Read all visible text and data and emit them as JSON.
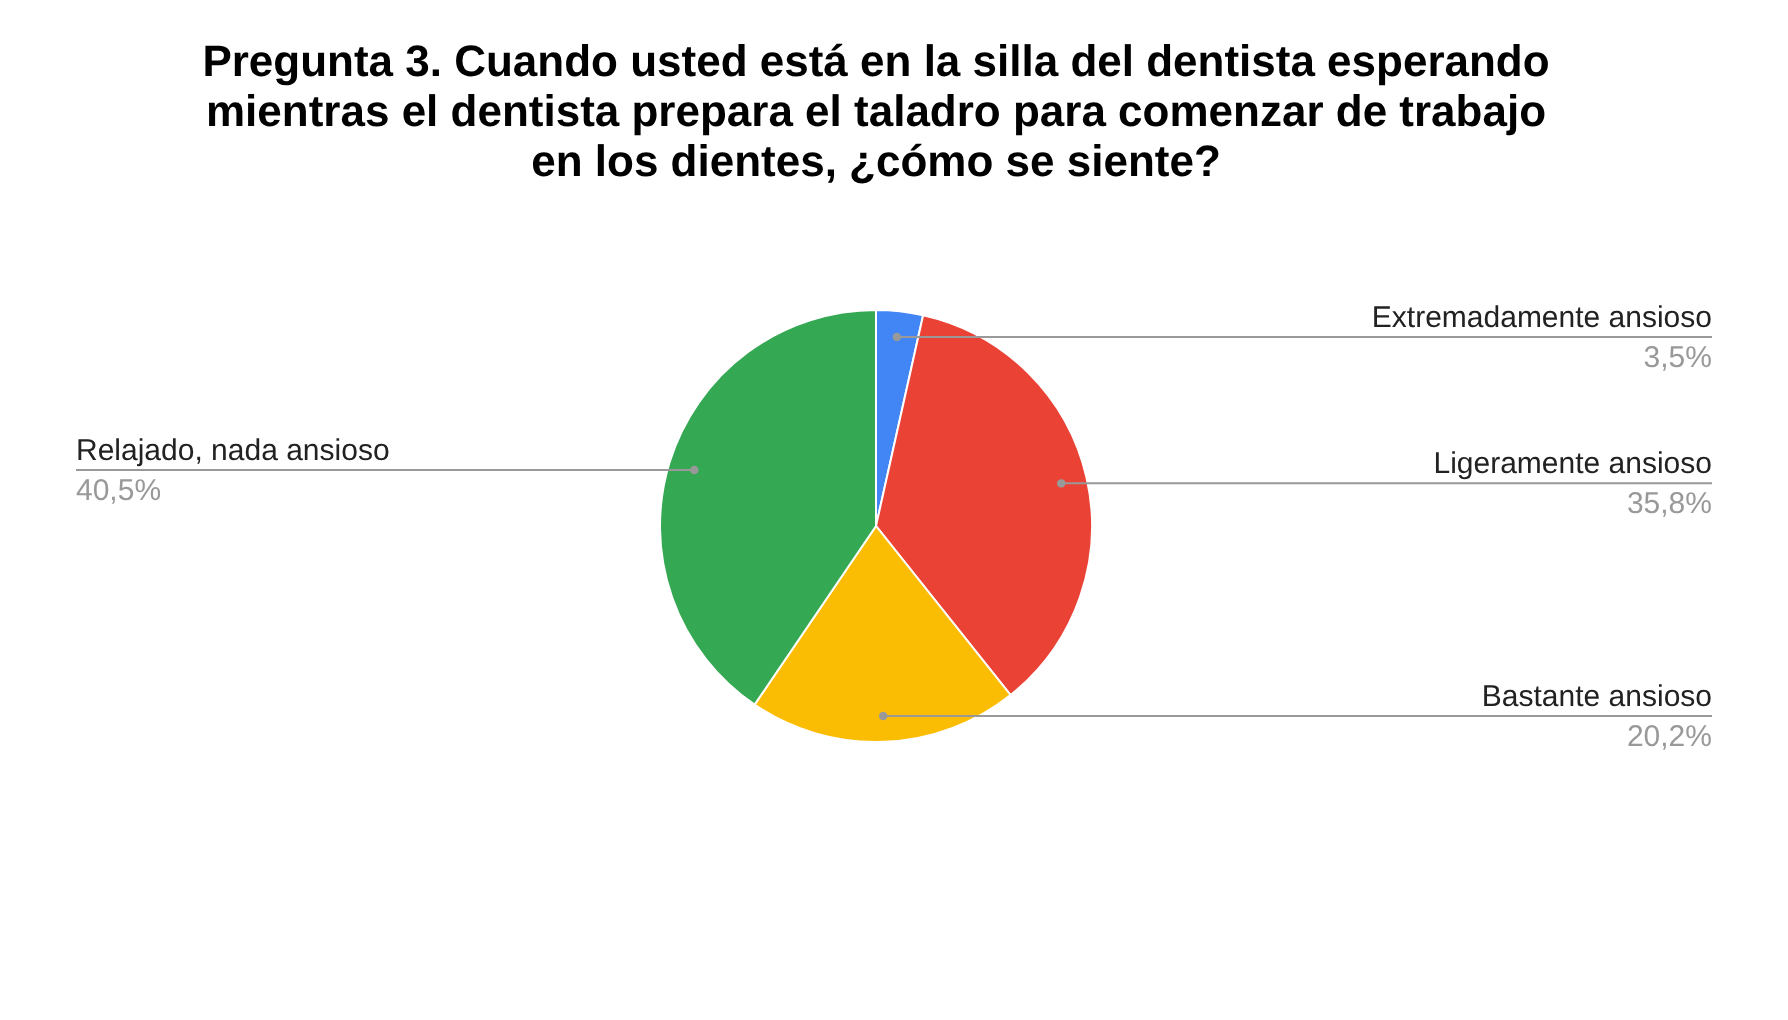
{
  "chart_data": {
    "type": "pie",
    "title": "Pregunta 3. Cuando usted está en la silla del dentista esperando mientras el dentista prepara el taladro para comenzar de trabajo en los dientes, ¿cómo se siente?",
    "categories": [
      "Extremadamente ansioso",
      "Ligeramente ansioso",
      "Bastante ansioso",
      "Relajado, nada ansioso"
    ],
    "values": [
      3.5,
      35.8,
      20.2,
      40.5
    ],
    "value_labels": [
      "3,5%",
      "35,8%",
      "20,2%",
      "40,5%"
    ],
    "colors": [
      "#4285f4",
      "#ea4335",
      "#fbbc04",
      "#34a853"
    ]
  }
}
